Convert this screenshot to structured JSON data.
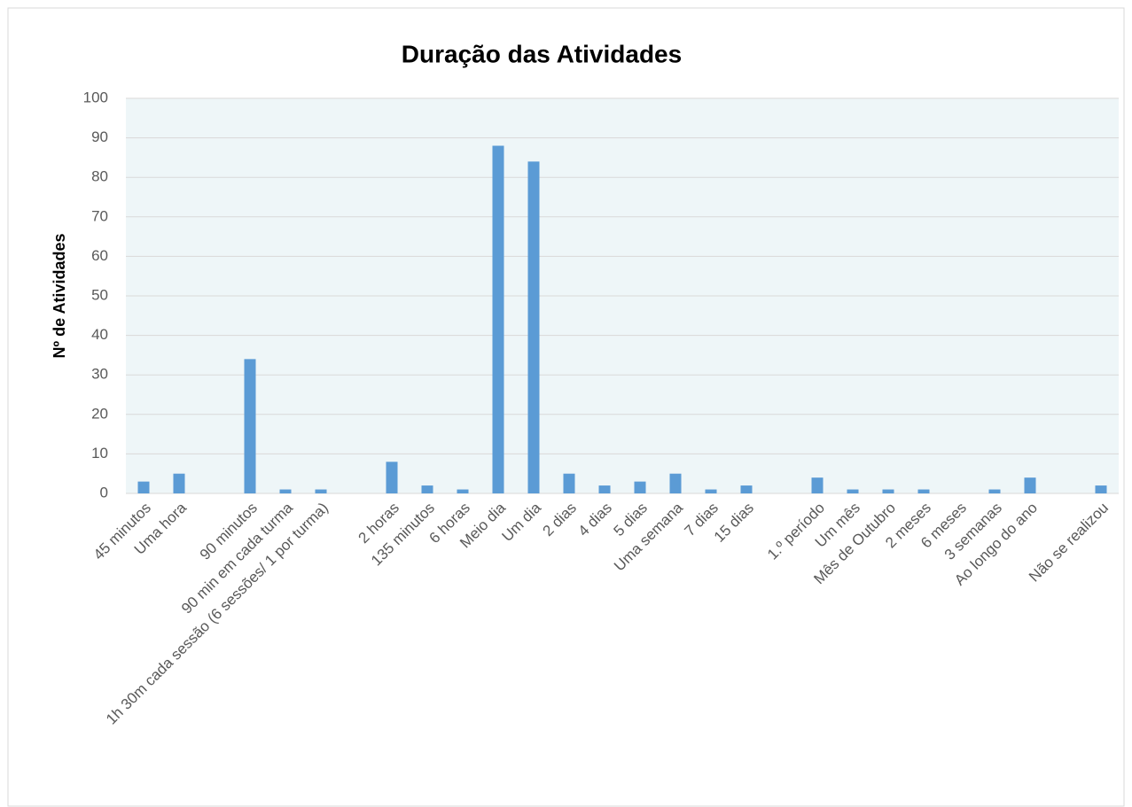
{
  "chart_data": {
    "type": "bar",
    "title": "Duração das Atividades",
    "y_label": "Nº de Atividades",
    "categories": [
      "45 minutos",
      "Uma hora",
      null,
      "90 minutos",
      "90 min em cada turma",
      "1h 30m cada sessão (6 sessões/ 1 por turma)",
      null,
      "2 horas",
      "135 minutos",
      "6 horas",
      "Meio dia",
      "Um dia",
      "2 dias",
      "4 dias",
      "5 dias",
      "Uma semana",
      "7 dias",
      "15 dias",
      null,
      "1.º período",
      "Um mês",
      "Mês de Outubro",
      "2 meses",
      "6 meses",
      "3 semanas",
      "Ao longo do ano",
      null,
      "Não se realizou"
    ],
    "values": [
      3,
      5,
      null,
      34,
      1,
      1,
      null,
      8,
      2,
      1,
      88,
      84,
      5,
      2,
      3,
      5,
      1,
      2,
      null,
      4,
      1,
      1,
      1,
      0,
      1,
      4,
      null,
      2
    ],
    "color": "#5b9bd5",
    "ylim": [
      0,
      100
    ],
    "yticks": [
      0,
      10,
      20,
      30,
      40,
      50,
      60,
      70,
      80,
      90,
      100
    ],
    "grid": true
  }
}
